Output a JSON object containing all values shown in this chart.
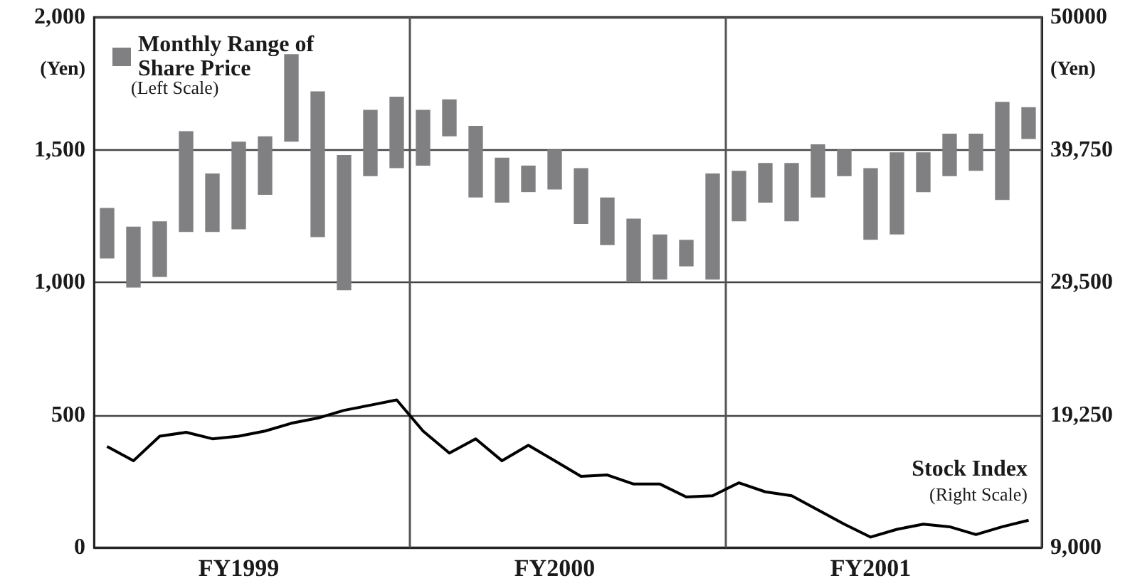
{
  "chart_data": {
    "type": "bar",
    "ylabel": "(Yen)",
    "y2label": "(Yen)",
    "categories": [
      null,
      null,
      null,
      null,
      null,
      "FY1999",
      null,
      null,
      null,
      null,
      null,
      null,
      null,
      null,
      null,
      null,
      null,
      "FY2000",
      null,
      null,
      null,
      null,
      null,
      null,
      null,
      null,
      null,
      null,
      null,
      "FY2001",
      null,
      null,
      null,
      null,
      null,
      null
    ],
    "ylim": [
      0,
      2000
    ],
    "yticks": [
      0,
      500,
      {
        "value": 1000,
        "label": "1,000"
      },
      {
        "value": 1500,
        "label": "1,500"
      },
      {
        "value": 2000,
        "label": "2,000"
      }
    ],
    "y2lim": [
      9000,
      50000
    ],
    "y2ticks": [
      {
        "value": 9000,
        "label": "9,000"
      },
      {
        "value": 19250,
        "label": "19,250"
      },
      {
        "value": 29500,
        "label": "29,500"
      },
      {
        "value": 39750,
        "label": "39,750"
      },
      50000
    ],
    "grid": true,
    "legend": "top left",
    "annotations": [
      "(Left Scale)",
      "(Right Scale)"
    ],
    "series": [
      {
        "name": "Monthly Range of Share Price",
        "color": "#808083",
        "base": [
          1090,
          980,
          1020,
          1190,
          1190,
          1200,
          1330,
          1530,
          1170,
          970,
          1400,
          1430,
          1440,
          1550,
          1320,
          1300,
          1340,
          1350,
          1220,
          1140,
          1000,
          1010,
          1060,
          1010,
          1230,
          1300,
          1230,
          1320,
          1400,
          1160,
          1180,
          1340,
          1400,
          1420,
          1310,
          1540
        ],
        "values": [
          190,
          230,
          210,
          380,
          220,
          330,
          220,
          330,
          550,
          510,
          250,
          270,
          210,
          140,
          270,
          170,
          100,
          150,
          210,
          180,
          240,
          170,
          100,
          400,
          190,
          150,
          220,
          200,
          100,
          270,
          310,
          150,
          160,
          140,
          370,
          120
        ]
      },
      {
        "type": "line",
        "name": "Stock Index",
        "color": "#000000",
        "axis": "y2",
        "values": [
          16800,
          15700,
          17600,
          17900,
          17400,
          17600,
          18000,
          18600,
          19000,
          19600,
          20000,
          20400,
          18000,
          16300,
          17400,
          15700,
          16900,
          15700,
          14500,
          14600,
          13900,
          13900,
          12900,
          13000,
          14000,
          13300,
          13000,
          11900,
          10800,
          9800,
          10400,
          10800,
          10600,
          10000,
          10600,
          11100
        ]
      }
    ]
  }
}
